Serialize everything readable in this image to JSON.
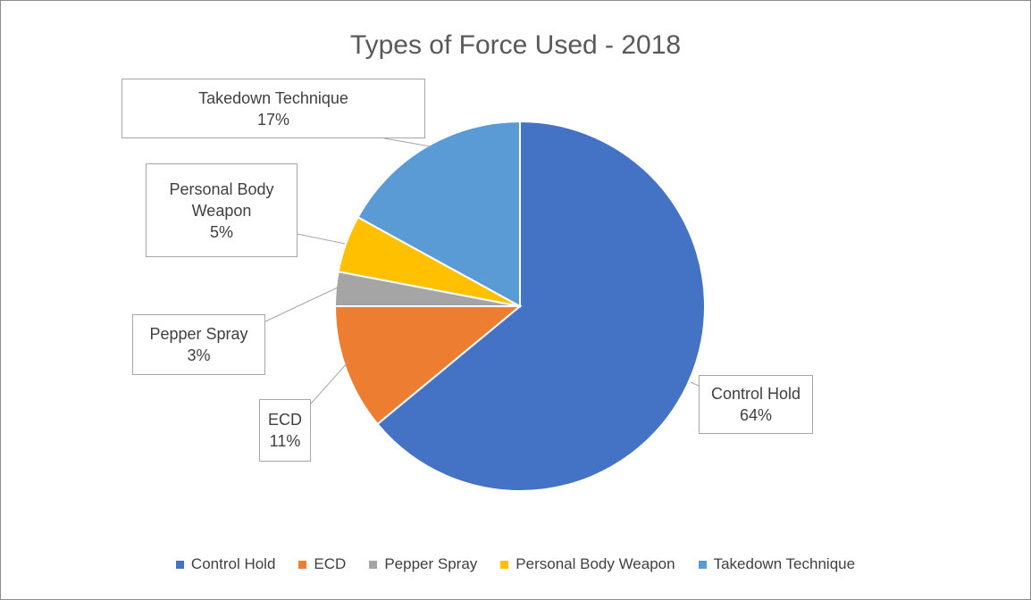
{
  "chart_data": {
    "type": "pie",
    "title": "Types of Force Used - 2018",
    "categories": [
      "Control Hold",
      "ECD",
      "Pepper Spray",
      "Personal Body Weapon",
      "Takedown Technique"
    ],
    "values": [
      64,
      11,
      3,
      5,
      17
    ],
    "value_labels": [
      "64%",
      "11%",
      "3%",
      "5%",
      "17%"
    ],
    "colors": [
      "#4472c4",
      "#ed7d31",
      "#a5a5a5",
      "#ffc000",
      "#5b9bd5"
    ],
    "legend": "bottom"
  }
}
